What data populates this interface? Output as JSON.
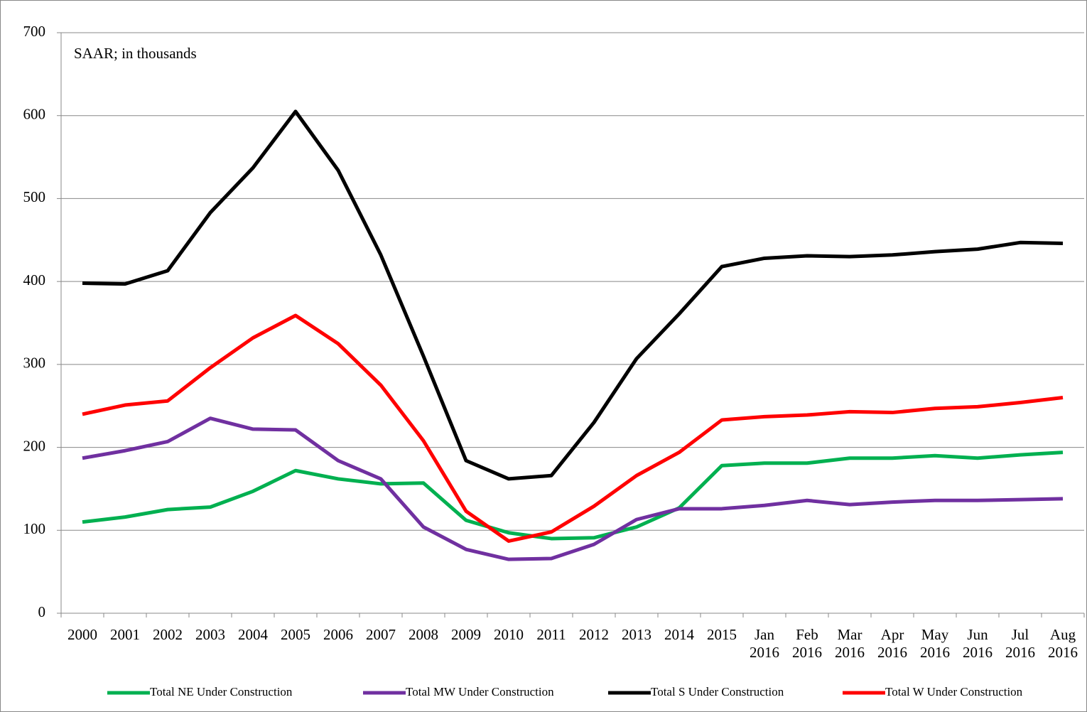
{
  "chart_data": {
    "type": "line",
    "annotation": "SAAR; in thousands",
    "categories": [
      "2000",
      "2001",
      "2002",
      "2003",
      "2004",
      "2005",
      "2006",
      "2007",
      "2008",
      "2009",
      "2010",
      "2011",
      "2012",
      "2013",
      "2014",
      "2015",
      "Jan 2016",
      "Feb 2016",
      "Mar 2016",
      "Apr 2016",
      "May 2016",
      "Jun 2016",
      "Jul 2016",
      "Aug 2016"
    ],
    "series": [
      {
        "name": "Total NE Under Construction",
        "color": "#00b050",
        "values": [
          110,
          116,
          125,
          128,
          147,
          172,
          162,
          156,
          157,
          112,
          97,
          90,
          91,
          104,
          127,
          178,
          181,
          181,
          187,
          187,
          190,
          187,
          191,
          194
        ]
      },
      {
        "name": "Total MW Under Construction",
        "color": "#7030a0",
        "values": [
          187,
          196,
          207,
          235,
          222,
          221,
          184,
          162,
          104,
          77,
          65,
          66,
          83,
          113,
          126,
          126,
          130,
          136,
          131,
          134,
          136,
          136,
          137,
          138
        ]
      },
      {
        "name": "Total S Under Construction",
        "color": "#000000",
        "values": [
          398,
          397,
          413,
          483,
          537,
          605,
          534,
          432,
          310,
          184,
          162,
          166,
          230,
          307,
          361,
          418,
          428,
          431,
          430,
          432,
          436,
          439,
          447,
          446
        ]
      },
      {
        "name": "Total W Under Construction",
        "color": "#ff0000",
        "values": [
          240,
          251,
          256,
          296,
          332,
          359,
          325,
          275,
          208,
          123,
          87,
          98,
          129,
          166,
          194,
          233,
          237,
          239,
          243,
          242,
          247,
          249,
          254,
          260
        ]
      }
    ],
    "ylim": [
      0,
      700
    ],
    "yticks": [
      0,
      100,
      200,
      300,
      400,
      500,
      600,
      700
    ],
    "grid": true
  }
}
